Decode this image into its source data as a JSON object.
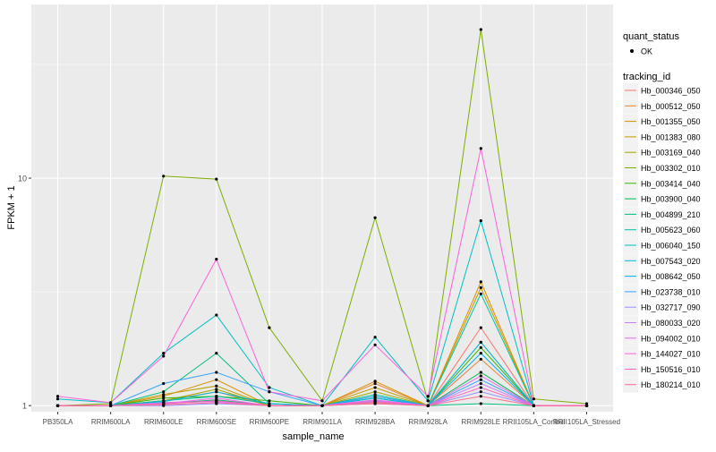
{
  "chart_data": {
    "type": "line",
    "xlabel": "sample_name",
    "ylabel": "FPKM + 1",
    "y_scale": "log10",
    "ylim": [
      0.94,
      58
    ],
    "y_ticks": [
      1,
      10
    ],
    "y_tick_labels": [
      "1",
      "10"
    ],
    "categories": [
      "PB350LA",
      "RRIM600LA",
      "RRIM600LE",
      "RRIM600SE",
      "RRIM600PE",
      "RRIM901LA",
      "RRIM928BA",
      "RRIM928LA",
      "RRIM928LE",
      "RRII105LA_Control",
      "RRII105LA_Stressed"
    ],
    "panel_background": "#ebebeb",
    "grid_color": "#ffffff",
    "point_color": "#000000",
    "legend_shape": {
      "title": "quant_status",
      "items": [
        {
          "label": "OK"
        }
      ]
    },
    "legend_color_title": "tracking_id",
    "series": [
      {
        "name": "Hb_000346_050",
        "color": "#F8766D",
        "values": [
          1.0,
          1.0,
          1.03,
          1.05,
          1.0,
          1.0,
          1.03,
          1.0,
          2.2,
          1.0,
          1.0
        ]
      },
      {
        "name": "Hb_000512_050",
        "color": "#EA8331",
        "values": [
          1.0,
          1.0,
          1.05,
          1.15,
          1.0,
          1.0,
          1.25,
          1.0,
          1.6,
          1.0,
          1.0
        ]
      },
      {
        "name": "Hb_001355_050",
        "color": "#D89000",
        "values": [
          1.0,
          1.0,
          1.1,
          1.3,
          1.0,
          1.0,
          1.28,
          1.0,
          3.5,
          1.0,
          1.0
        ]
      },
      {
        "name": "Hb_001383_080",
        "color": "#C09B00",
        "values": [
          1.0,
          1.0,
          1.12,
          1.22,
          1.0,
          1.0,
          1.2,
          1.0,
          3.3,
          1.0,
          1.0
        ]
      },
      {
        "name": "Hb_003169_040",
        "color": "#A3A500",
        "values": [
          1.0,
          1.0,
          1.05,
          1.18,
          1.0,
          1.0,
          1.15,
          1.0,
          1.9,
          1.0,
          1.0
        ]
      },
      {
        "name": "Hb_003302_010",
        "color": "#7CAE00",
        "values": [
          1.0,
          1.02,
          10.2,
          9.9,
          2.2,
          1.05,
          6.7,
          1.05,
          45.0,
          1.07,
          1.02
        ]
      },
      {
        "name": "Hb_003414_040",
        "color": "#39B600",
        "values": [
          1.0,
          1.0,
          1.08,
          1.1,
          1.05,
          1.0,
          1.1,
          1.0,
          1.8,
          1.0,
          1.0
        ]
      },
      {
        "name": "Hb_003900_040",
        "color": "#00BB4E",
        "values": [
          1.0,
          1.0,
          1.02,
          1.06,
          1.0,
          1.0,
          1.08,
          1.0,
          1.4,
          1.0,
          1.0
        ]
      },
      {
        "name": "Hb_004899_210",
        "color": "#00BF7D",
        "values": [
          1.0,
          1.0,
          1.15,
          1.7,
          1.02,
          1.0,
          1.05,
          1.0,
          1.02,
          1.0,
          1.0
        ]
      },
      {
        "name": "Hb_005623_060",
        "color": "#00C1A3",
        "values": [
          1.0,
          1.0,
          1.05,
          1.1,
          1.02,
          1.0,
          1.12,
          1.0,
          3.1,
          1.0,
          1.0
        ]
      },
      {
        "name": "Hb_006040_150",
        "color": "#00BFC4",
        "values": [
          1.07,
          1.03,
          1.7,
          2.5,
          1.2,
          1.0,
          2.0,
          1.05,
          6.5,
          1.0,
          1.0
        ]
      },
      {
        "name": "Hb_007543_020",
        "color": "#00BAE0",
        "values": [
          1.0,
          1.0,
          1.04,
          1.15,
          1.02,
          1.0,
          1.08,
          1.0,
          1.9,
          1.0,
          1.0
        ]
      },
      {
        "name": "Hb_008642_050",
        "color": "#00B0F6",
        "values": [
          1.0,
          1.0,
          1.02,
          1.05,
          1.0,
          1.0,
          1.04,
          1.0,
          1.7,
          1.0,
          1.0
        ]
      },
      {
        "name": "Hb_023738_010",
        "color": "#35A2FF",
        "values": [
          1.0,
          1.0,
          1.25,
          1.4,
          1.15,
          1.0,
          1.1,
          1.0,
          1.3,
          1.0,
          1.0
        ]
      },
      {
        "name": "Hb_032717_090",
        "color": "#9590FF",
        "values": [
          1.0,
          1.0,
          1.0,
          1.02,
          1.0,
          1.0,
          1.02,
          1.0,
          1.15,
          1.0,
          1.0
        ]
      },
      {
        "name": "Hb_080033_020",
        "color": "#C77CFF",
        "values": [
          1.0,
          1.0,
          1.03,
          1.04,
          1.0,
          1.0,
          1.05,
          1.0,
          1.25,
          1.0,
          1.0
        ]
      },
      {
        "name": "Hb_094002_010",
        "color": "#E76BF3",
        "values": [
          1.0,
          1.0,
          1.02,
          1.08,
          1.0,
          1.0,
          1.06,
          1.0,
          1.35,
          1.0,
          1.0
        ]
      },
      {
        "name": "Hb_144027_010",
        "color": "#FA62DB",
        "values": [
          1.1,
          1.03,
          1.65,
          4.4,
          1.15,
          1.05,
          1.85,
          1.1,
          13.5,
          1.0,
          1.0
        ]
      },
      {
        "name": "Hb_150516_010",
        "color": "#FF62BC",
        "values": [
          1.0,
          1.0,
          1.02,
          1.05,
          1.0,
          1.0,
          1.04,
          1.0,
          1.2,
          1.0,
          1.0
        ]
      },
      {
        "name": "Hb_180214_010",
        "color": "#FF6C91",
        "values": [
          1.0,
          1.0,
          1.01,
          1.03,
          1.0,
          1.0,
          1.02,
          1.0,
          1.1,
          1.0,
          1.0
        ]
      }
    ]
  }
}
